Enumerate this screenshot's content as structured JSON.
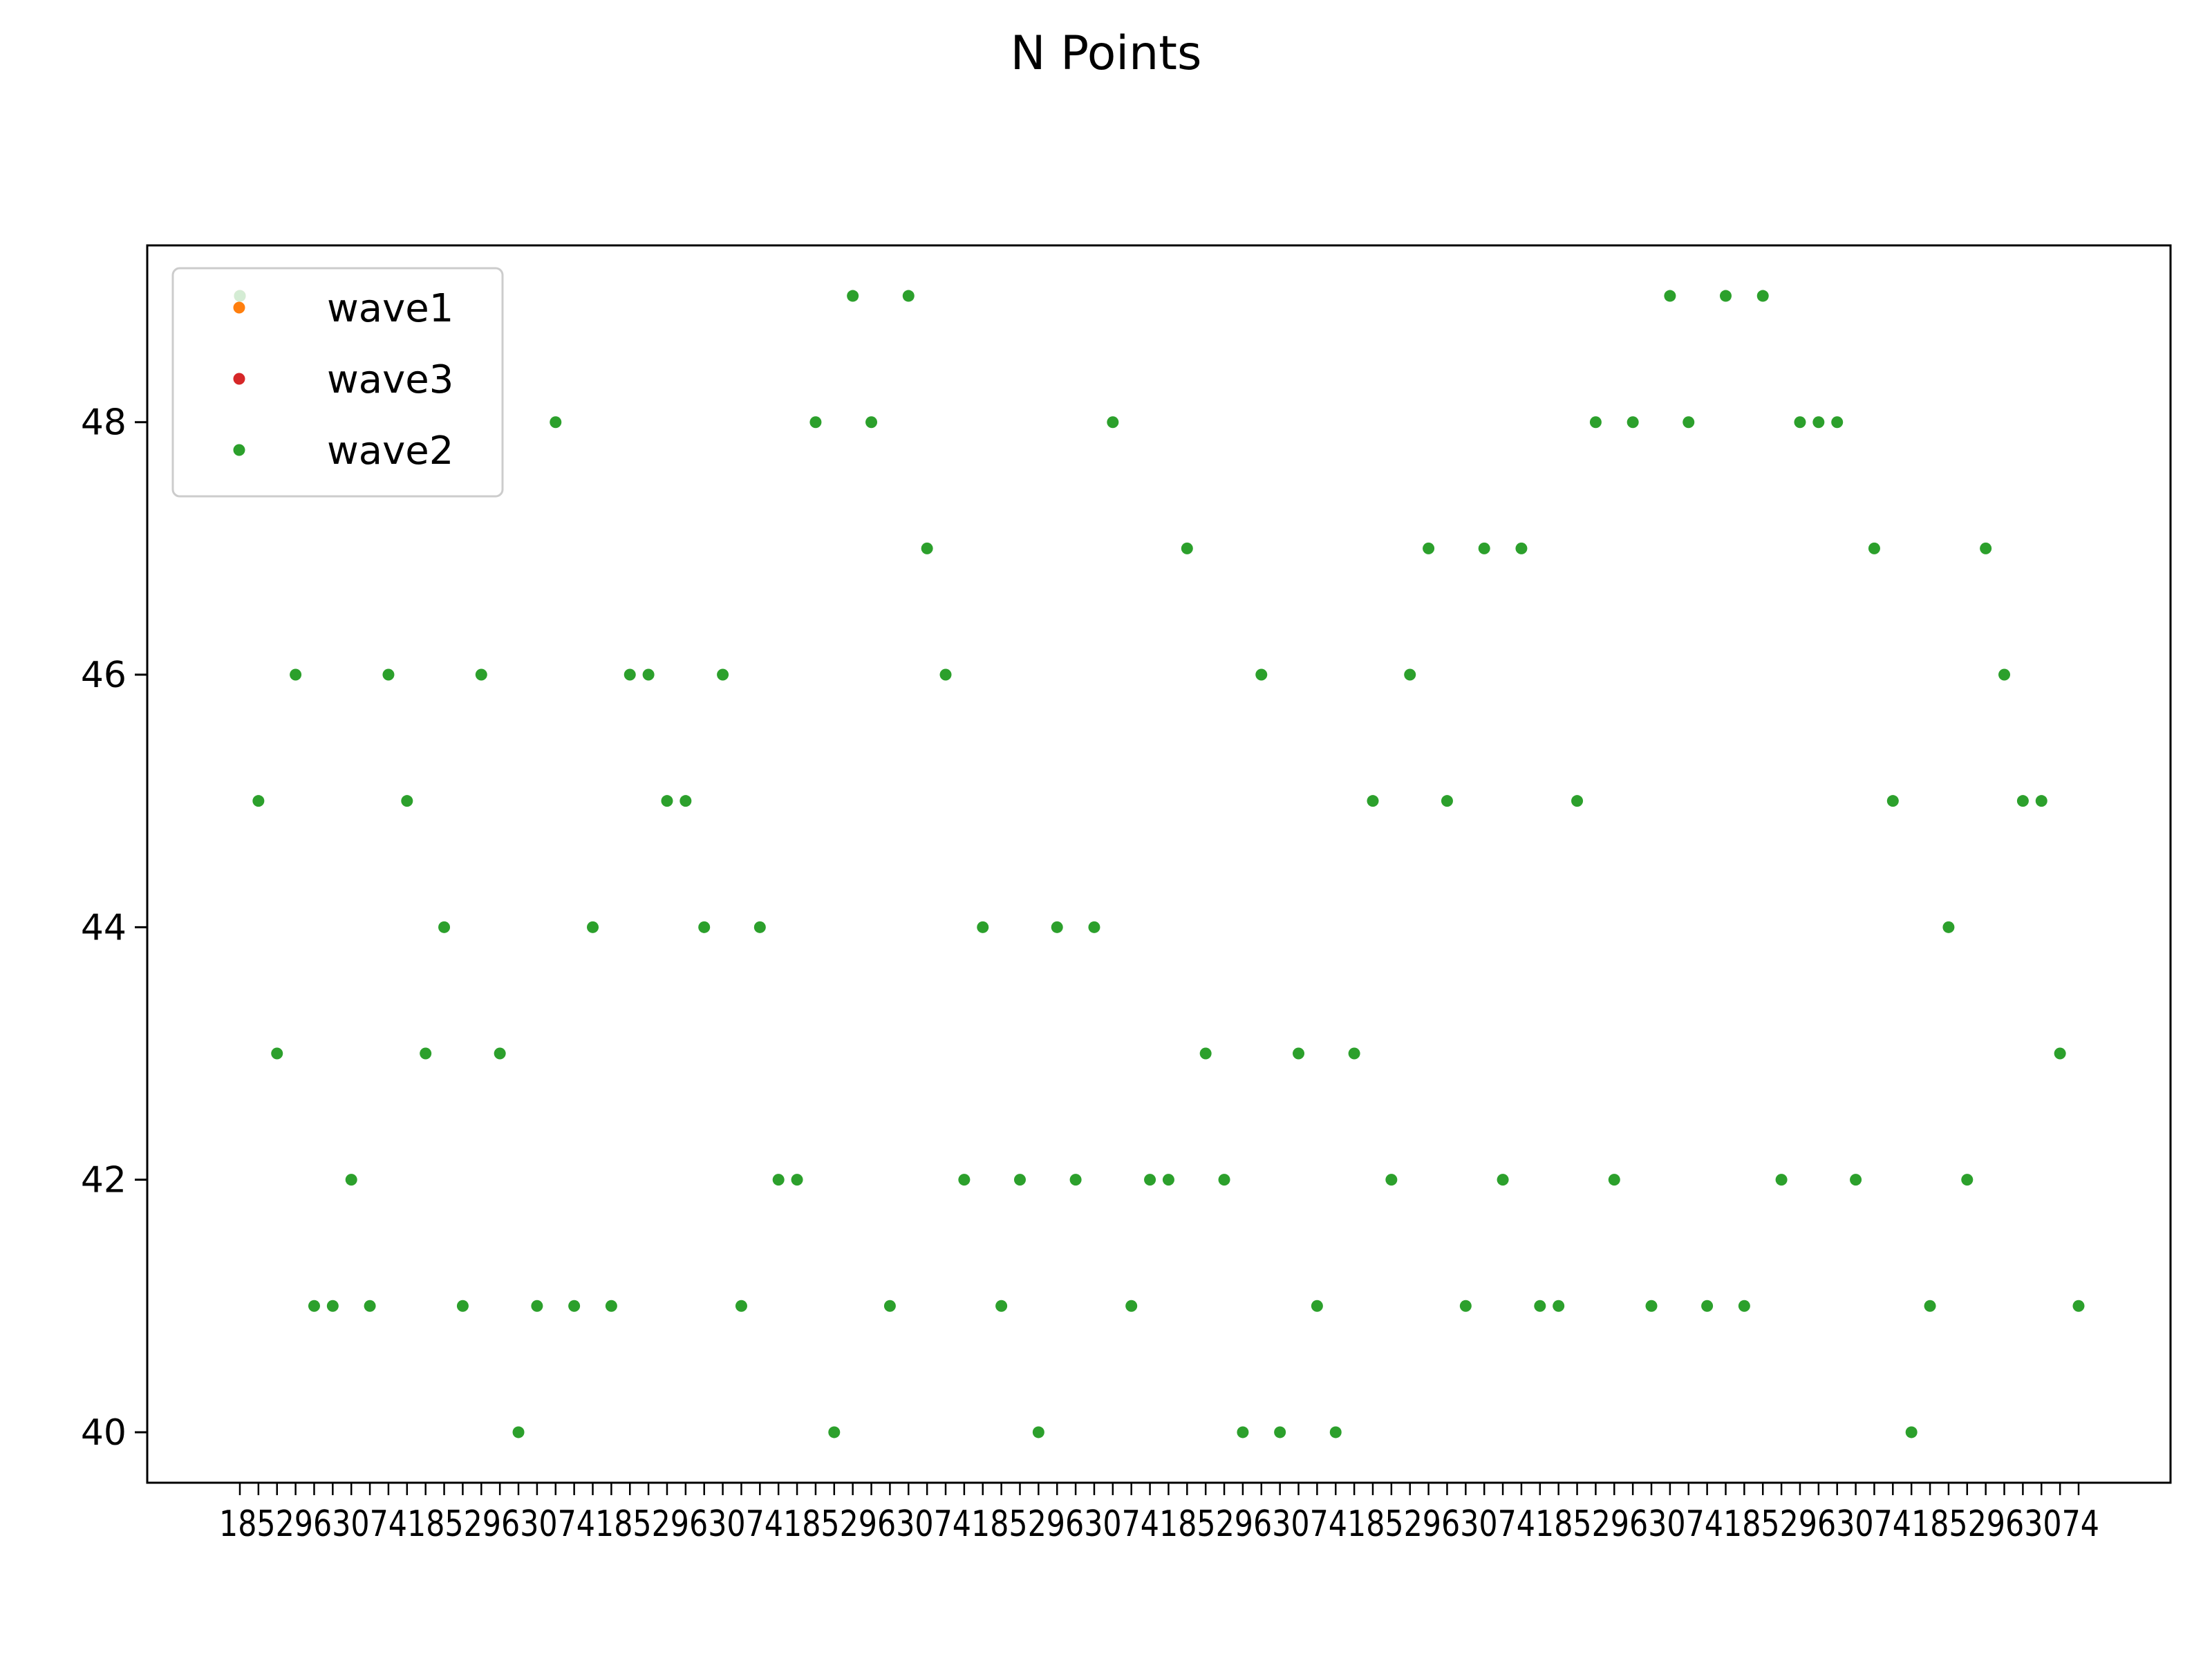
{
  "chart_data": {
    "type": "scatter",
    "title": "N Points",
    "xlabel": "",
    "ylabel": "",
    "ylim": [
      39.6,
      49.4
    ],
    "yticks": [
      40,
      42,
      44,
      46,
      48
    ],
    "grid": false,
    "legend_position": "upper-left",
    "x_tick_labels_overlapping": true,
    "series": [
      {
        "name": "wave1",
        "color": "#ff7f0e",
        "values": [
          49
        ]
      },
      {
        "name": "wave3",
        "color": "#d62728",
        "values": [
          49
        ]
      },
      {
        "name": "wave2",
        "color": "#2ca02c",
        "values": [
          49,
          45,
          43,
          46,
          41,
          41,
          42,
          41,
          46,
          45,
          43,
          44,
          41,
          46,
          43,
          40,
          41,
          48,
          41,
          44,
          41,
          46,
          46,
          45,
          45,
          44,
          46,
          41,
          44,
          42,
          42,
          48,
          40,
          49,
          48,
          41,
          49,
          47,
          46,
          42,
          44,
          41,
          42,
          40,
          44,
          42,
          44,
          48,
          41,
          42,
          42,
          47,
          43,
          42,
          40,
          46,
          40,
          43,
          41,
          40,
          43,
          45,
          42,
          46,
          47,
          45,
          41,
          47,
          42,
          47,
          41,
          41,
          45,
          48,
          42,
          48,
          41,
          49,
          48,
          41,
          49,
          41,
          49,
          42,
          48,
          48,
          48,
          42,
          47,
          45,
          40,
          41,
          44,
          42,
          47,
          46,
          45,
          45,
          43,
          41
        ]
      }
    ]
  }
}
